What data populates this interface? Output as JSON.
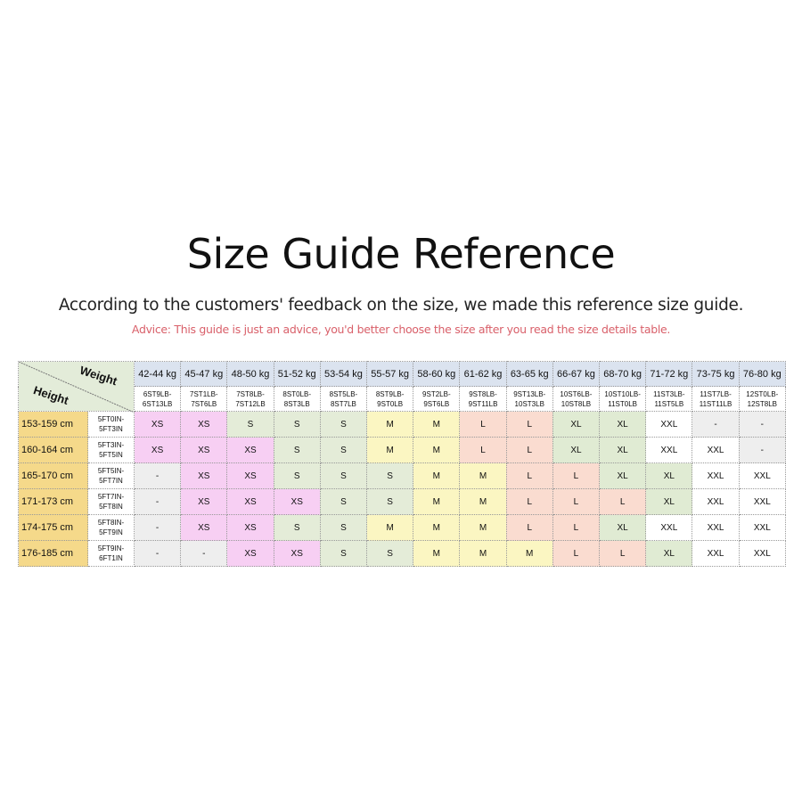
{
  "title": "Size Guide Reference",
  "subtitle": "According to the customers' feedback on the size, we made this reference size guide.",
  "advice": "Advice: This guide is just an advice, you'd better choose the size after you read the size details table.",
  "table": {
    "weight_label": "Weight",
    "height_label": "Height",
    "weights_kg": [
      "42-44 kg",
      "45-47 kg",
      "48-50 kg",
      "51-52 kg",
      "53-54 kg",
      "55-57 kg",
      "58-60 kg",
      "61-62 kg",
      "63-65 kg",
      "66-67 kg",
      "68-70 kg",
      "71-72 kg",
      "73-75 kg",
      "76-80 kg"
    ],
    "weights_st": [
      [
        "6ST9LB-",
        "6ST13LB"
      ],
      [
        "7ST1LB-",
        "7ST6LB"
      ],
      [
        "7ST8LB-",
        "7ST12LB"
      ],
      [
        "8ST0LB-",
        "8ST3LB"
      ],
      [
        "8ST5LB-",
        "8ST7LB"
      ],
      [
        "8ST9LB-",
        "9ST0LB"
      ],
      [
        "9ST2LB-",
        "9ST6LB"
      ],
      [
        "9ST8LB-",
        "9ST11LB"
      ],
      [
        "9ST13LB-",
        "10ST3LB"
      ],
      [
        "10ST6LB-",
        "10ST8LB"
      ],
      [
        "10ST10LB-",
        "11ST0LB"
      ],
      [
        "11ST3LB-",
        "11ST5LB"
      ],
      [
        "11ST7LB-",
        "11ST11LB"
      ],
      [
        "12ST0LB-",
        "12ST8LB"
      ]
    ],
    "rows": [
      {
        "cm": "153-159 cm",
        "ft": [
          "5FT0IN-",
          "5FT3IN"
        ],
        "sizes": [
          "XS",
          "XS",
          "S",
          "S",
          "S",
          "M",
          "M",
          "L",
          "L",
          "XL",
          "XL",
          "XXL",
          "-",
          "-"
        ]
      },
      {
        "cm": "160-164 cm",
        "ft": [
          "5FT3IN-",
          "5FT5IN"
        ],
        "sizes": [
          "XS",
          "XS",
          "XS",
          "S",
          "S",
          "M",
          "M",
          "L",
          "L",
          "XL",
          "XL",
          "XXL",
          "XXL",
          "-"
        ]
      },
      {
        "cm": "165-170 cm",
        "ft": [
          "5FT5IN-",
          "5FT7IN"
        ],
        "sizes": [
          "-",
          "XS",
          "XS",
          "S",
          "S",
          "S",
          "M",
          "M",
          "L",
          "L",
          "XL",
          "XL",
          "XXL",
          "XXL"
        ]
      },
      {
        "cm": "171-173 cm",
        "ft": [
          "5FT7IN-",
          "5FT8IN"
        ],
        "sizes": [
          "-",
          "XS",
          "XS",
          "XS",
          "S",
          "S",
          "M",
          "M",
          "L",
          "L",
          "L",
          "XL",
          "XXL",
          "XXL"
        ]
      },
      {
        "cm": "174-175 cm",
        "ft": [
          "5FT8IN-",
          "5FT9IN"
        ],
        "sizes": [
          "-",
          "XS",
          "XS",
          "S",
          "S",
          "M",
          "M",
          "M",
          "L",
          "L",
          "XL",
          "XXL",
          "XXL",
          "XXL"
        ]
      },
      {
        "cm": "176-185 cm",
        "ft": [
          "5FT9IN-",
          "6FT1IN"
        ],
        "sizes": [
          "-",
          "-",
          "XS",
          "XS",
          "S",
          "S",
          "M",
          "M",
          "M",
          "L",
          "L",
          "XL",
          "XXL",
          "XXL"
        ]
      }
    ]
  },
  "size_colors": {
    "XS": "#f7cff3",
    "S": "#e4ecd8",
    "M": "#fbf6c2",
    "L": "#fadcd0",
    "XL": "#e0ebd3",
    "XXL": "#ffffff",
    "-": "#eeeeee"
  }
}
